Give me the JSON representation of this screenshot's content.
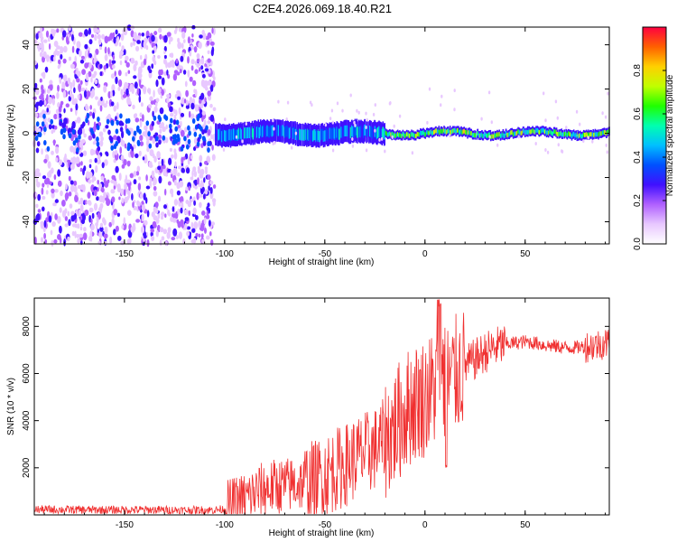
{
  "title": "C2E4.2026.069.18.40.R21",
  "chart_data": [
    {
      "type": "heatmap",
      "xlabel": "Height of straight line (km)",
      "ylabel": "Frequency (Hz)",
      "xlim": [
        -195,
        92
      ],
      "ylim": [
        -50,
        48
      ],
      "x_ticks": [
        -150,
        -100,
        -50,
        0,
        50
      ],
      "x_tick_labels": [
        "-150",
        "-100",
        "-50",
        "0",
        "50"
      ],
      "y_ticks": [
        -40,
        -20,
        0,
        20,
        40
      ],
      "y_tick_labels": [
        "-40",
        "-20",
        "0",
        "20",
        "40"
      ],
      "colorbar": {
        "label": "Normalized spectral amplitude",
        "range": [
          0,
          1
        ],
        "ticks": [
          0.0,
          0.2,
          0.4,
          0.6,
          0.8
        ],
        "tick_labels": [
          "0.0",
          "0.2",
          "0.4",
          "0.6",
          "0.8"
        ],
        "colormap": [
          "#ffffff",
          "#e8c8ff",
          "#b060ff",
          "#4010ff",
          "#0050ff",
          "#00c0ff",
          "#00ffb0",
          "#20ff00",
          "#c0ff00",
          "#ffd000",
          "#ff6000",
          "#ff0040"
        ]
      },
      "regions": [
        {
          "name": "noise",
          "x_range": [
            -195,
            -105
          ],
          "freq_range": [
            -50,
            48
          ],
          "amplitude": 0.2
        },
        {
          "name": "signal-broad",
          "x_range": [
            -105,
            -20
          ],
          "freq_center": 0,
          "freq_halfwidth": 5,
          "amplitude": 0.5
        },
        {
          "name": "signal-narrow",
          "x_range": [
            -20,
            92
          ],
          "freq_center": 0,
          "freq_halfwidth": 2,
          "amplitude": 0.75
        }
      ]
    },
    {
      "type": "line",
      "xlabel": "Height of straight line (km)",
      "ylabel": "SNR (10 * v/v)",
      "xlim": [
        -195,
        92
      ],
      "ylim": [
        0,
        9200
      ],
      "x_ticks": [
        -150,
        -100,
        -50,
        0,
        50
      ],
      "x_tick_labels": [
        "-150",
        "-100",
        "-50",
        "0",
        "50"
      ],
      "y_ticks": [
        2000,
        4000,
        6000,
        8000
      ],
      "y_tick_labels": [
        "2000",
        "4000",
        "6000",
        "8000"
      ],
      "color": "#f03030",
      "series": [
        {
          "name": "SNR",
          "x": [
            -195,
            -180,
            -160,
            -140,
            -120,
            -105,
            -100,
            -95,
            -90,
            -85,
            -80,
            -75,
            -70,
            -65,
            -60,
            -55,
            -50,
            -45,
            -40,
            -35,
            -30,
            -25,
            -20,
            -15,
            -10,
            -5,
            0,
            5,
            8,
            10,
            15,
            20,
            25,
            30,
            35,
            40,
            45,
            50,
            55,
            60,
            65,
            70,
            75,
            80,
            85,
            90,
            92
          ],
          "y": [
            230,
            220,
            210,
            215,
            200,
            210,
            250,
            450,
            650,
            900,
            1100,
            1200,
            1250,
            1300,
            1350,
            1400,
            1700,
            1900,
            2100,
            2400,
            2600,
            2800,
            3200,
            3700,
            4400,
            4800,
            5000,
            5400,
            5800,
            5600,
            5900,
            6300,
            6600,
            6900,
            7100,
            7250,
            7300,
            7350,
            7300,
            7200,
            7150,
            7100,
            7100,
            7150,
            7200,
            7300,
            7300
          ]
        }
      ],
      "envelope": [
        {
          "x_range": [
            -195,
            -100
          ],
          "amp": 180
        },
        {
          "x_range": [
            -100,
            -60
          ],
          "amp": 1200
        },
        {
          "x_range": [
            -60,
            -20
          ],
          "amp": 1800
        },
        {
          "x_range": [
            -20,
            20
          ],
          "amp": 2600
        },
        {
          "x_range": [
            20,
            40
          ],
          "amp": 900
        },
        {
          "x_range": [
            40,
            80
          ],
          "amp": 300
        },
        {
          "x_range": [
            80,
            92
          ],
          "amp": 700
        }
      ]
    }
  ]
}
